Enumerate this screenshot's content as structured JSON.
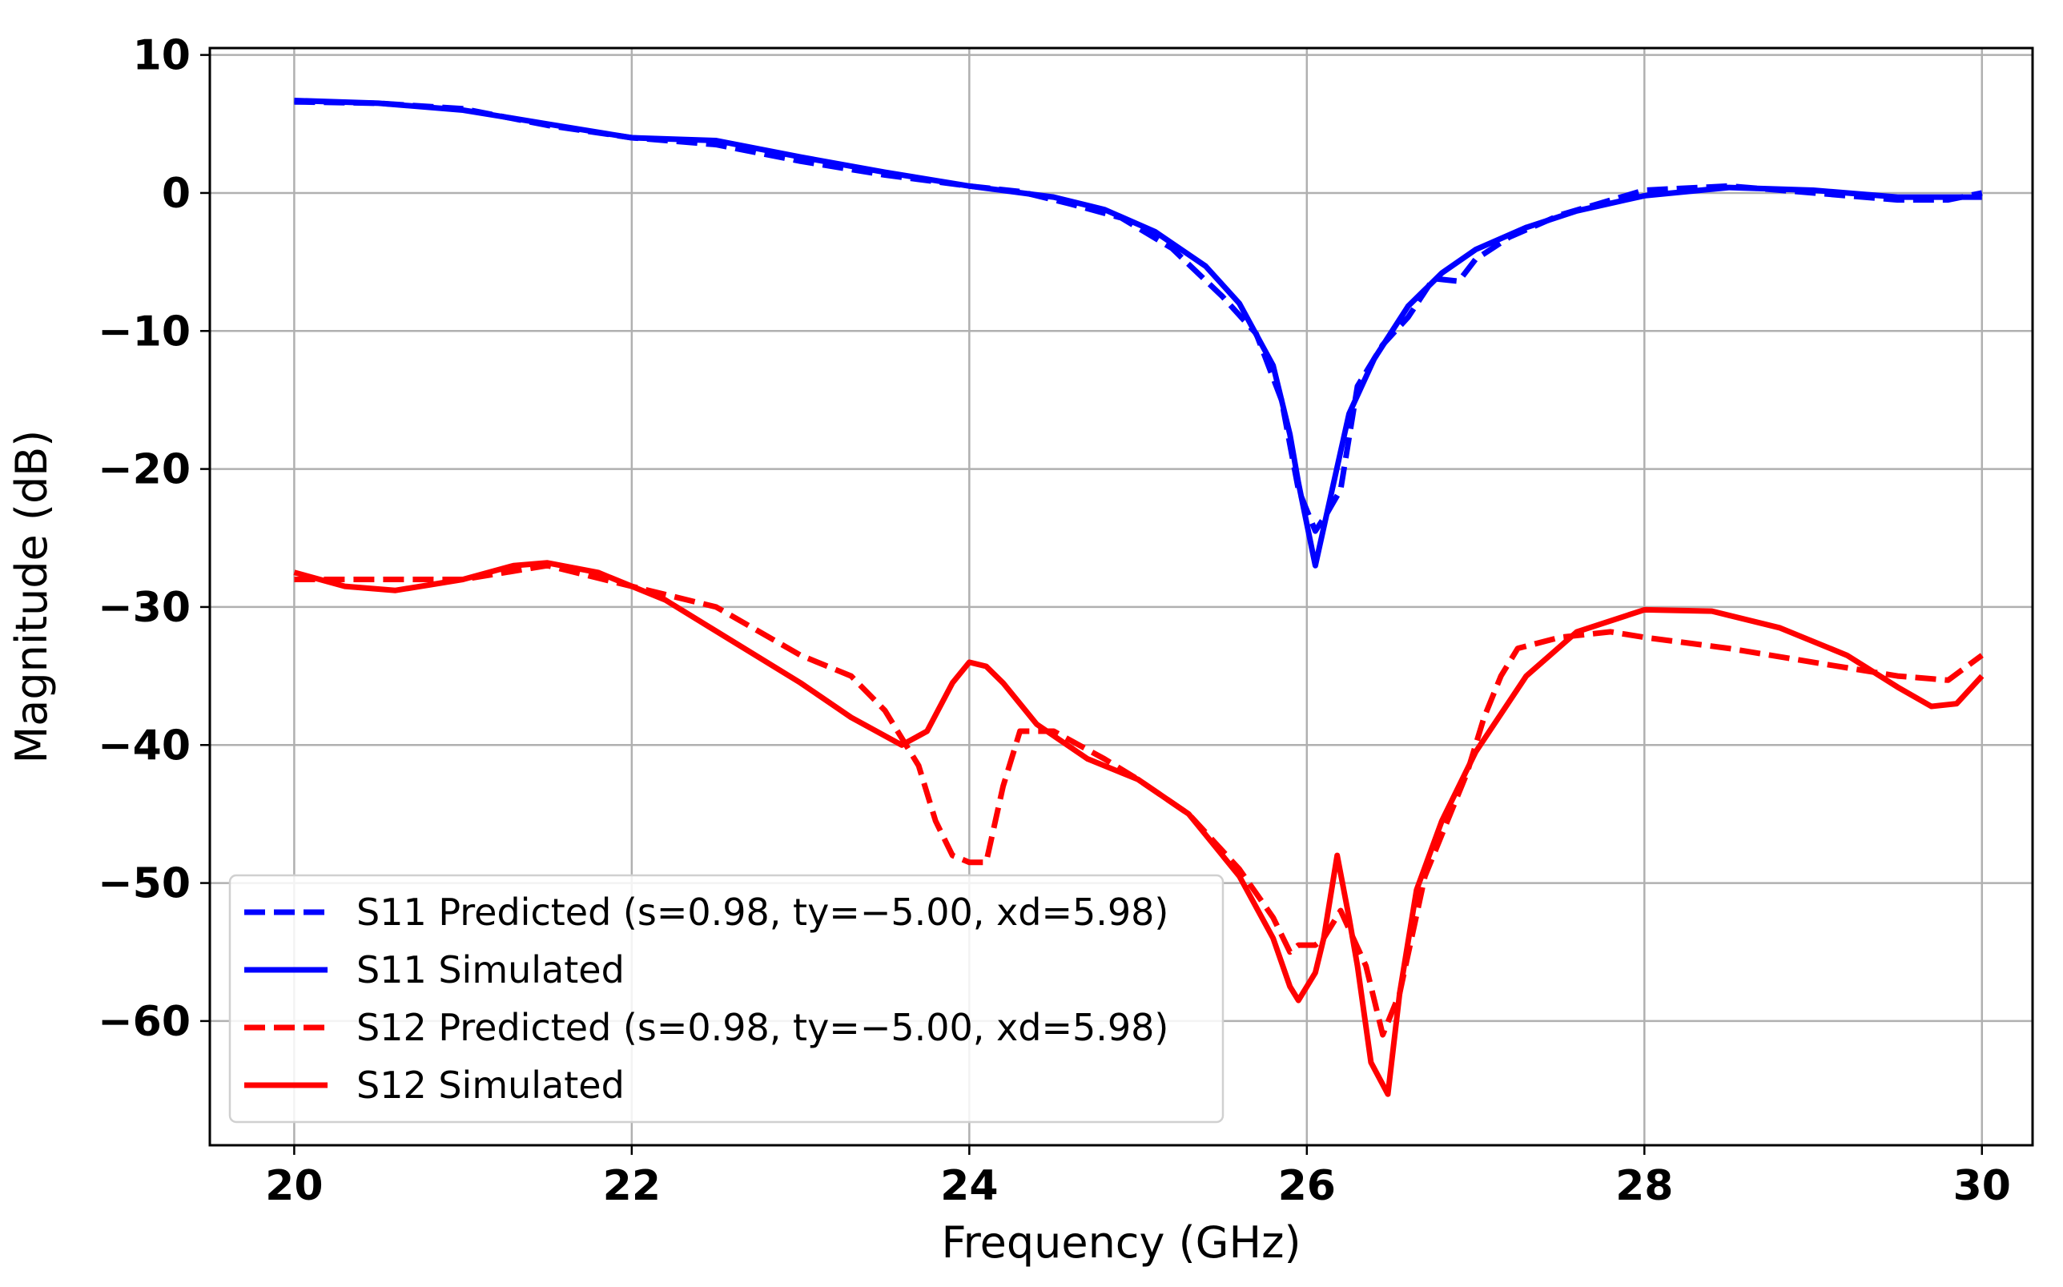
{
  "chart_data": {
    "type": "line",
    "title": "",
    "xlabel": "Frequency (GHz)",
    "ylabel": "Magnitude (dB)",
    "xlim": [
      19.5,
      30.3
    ],
    "ylim": [
      -69,
      10.5
    ],
    "grid": true,
    "legend_position": "lower-left",
    "xticks": [
      20,
      22,
      24,
      26,
      28,
      30
    ],
    "xtick_labels": [
      "20",
      "22",
      "24",
      "26",
      "28",
      "30"
    ],
    "yticks": [
      10,
      0,
      -10,
      -20,
      -30,
      -40,
      -50,
      -60
    ],
    "ytick_labels": [
      "10",
      "0",
      "−10",
      "−20",
      "−30",
      "−40",
      "−50",
      "−60"
    ],
    "series": [
      {
        "name": "S11 Predicted (s=0.98, ty=−5.00, xd=5.98)",
        "color": "#0000ff",
        "style": "dashed",
        "x": [
          20,
          20.5,
          21,
          21.5,
          22,
          22.5,
          23,
          23.5,
          24,
          24.3,
          24.6,
          24.9,
          25.2,
          25.5,
          25.7,
          25.85,
          25.95,
          26.05,
          26.12,
          26.2,
          26.3,
          26.45,
          26.6,
          26.75,
          26.9,
          27.0,
          27.2,
          27.5,
          28,
          28.5,
          29,
          29.5,
          29.8,
          30
        ],
        "values": [
          6.6,
          6.5,
          6.1,
          4.9,
          4.0,
          3.5,
          2.3,
          1.3,
          0.5,
          0.1,
          -0.8,
          -1.8,
          -4.0,
          -7.5,
          -10.2,
          -15.0,
          -21.5,
          -24.5,
          -23.2,
          -21.5,
          -14.0,
          -11.0,
          -9.0,
          -6.2,
          -6.4,
          -4.8,
          -3.2,
          -1.6,
          0.2,
          0.5,
          0.0,
          -0.5,
          -0.5,
          0.0
        ]
      },
      {
        "name": "S11 Simulated",
        "color": "#0000ff",
        "style": "solid",
        "x": [
          20,
          20.5,
          21,
          21.5,
          22,
          22.5,
          23,
          23.5,
          24,
          24.5,
          24.8,
          25.1,
          25.4,
          25.6,
          25.8,
          25.9,
          25.95,
          26.05,
          26.15,
          26.25,
          26.4,
          26.6,
          26.8,
          27.0,
          27.3,
          27.6,
          28.0,
          28.5,
          29,
          29.5,
          30
        ],
        "values": [
          6.7,
          6.5,
          6.0,
          5.0,
          4.0,
          3.8,
          2.6,
          1.5,
          0.5,
          -0.3,
          -1.2,
          -2.8,
          -5.3,
          -8.0,
          -12.5,
          -17.5,
          -21.0,
          -27.0,
          -21.5,
          -16.0,
          -12.0,
          -8.2,
          -5.8,
          -4.1,
          -2.5,
          -1.3,
          -0.2,
          0.4,
          0.2,
          -0.3,
          -0.3
        ]
      },
      {
        "name": "S12 Predicted (s=0.98, ty=−5.00, xd=5.98)",
        "color": "#ff0000",
        "style": "dashed",
        "x": [
          20,
          20.5,
          21,
          21.5,
          22,
          22.5,
          23,
          23.3,
          23.5,
          23.7,
          23.8,
          23.9,
          24.0,
          24.1,
          24.2,
          24.3,
          24.5,
          24.8,
          25.0,
          25.3,
          25.6,
          25.8,
          25.9,
          25.95,
          26.05,
          26.1,
          26.2,
          26.35,
          26.45,
          26.55,
          26.7,
          26.85,
          26.95,
          27.05,
          27.15,
          27.25,
          27.5,
          27.8,
          28.0,
          28.5,
          29,
          29.5,
          29.8,
          30
        ],
        "values": [
          -28.0,
          -28.0,
          -28.0,
          -27.0,
          -28.5,
          -30.0,
          -33.5,
          -35.0,
          -37.5,
          -41.5,
          -45.5,
          -48.0,
          -48.5,
          -48.5,
          -43.0,
          -39.0,
          -39.0,
          -41.0,
          -42.5,
          -45.0,
          -49.0,
          -52.5,
          -55.0,
          -54.5,
          -54.5,
          -54.0,
          -52.0,
          -56.0,
          -61.0,
          -58.0,
          -49.5,
          -45.0,
          -42.0,
          -38.0,
          -35.0,
          -33.0,
          -32.2,
          -31.8,
          -32.2,
          -33.0,
          -34.0,
          -35.0,
          -35.3,
          -33.5
        ]
      },
      {
        "name": "S12 Simulated",
        "color": "#ff0000",
        "style": "solid",
        "x": [
          20,
          20.3,
          20.6,
          21,
          21.3,
          21.5,
          21.8,
          22.2,
          22.6,
          23,
          23.3,
          23.6,
          23.75,
          23.9,
          24.0,
          24.1,
          24.2,
          24.4,
          24.7,
          25.0,
          25.3,
          25.6,
          25.8,
          25.9,
          25.95,
          26.05,
          26.1,
          26.18,
          26.25,
          26.3,
          26.38,
          26.48,
          26.55,
          26.65,
          26.8,
          27.0,
          27.3,
          27.6,
          28.0,
          28.4,
          28.8,
          29.2,
          29.5,
          29.7,
          29.85,
          30
        ],
        "values": [
          -27.5,
          -28.5,
          -28.8,
          -28.0,
          -27.0,
          -26.8,
          -27.5,
          -29.5,
          -32.5,
          -35.5,
          -38.0,
          -40.0,
          -39.0,
          -35.5,
          -34.0,
          -34.3,
          -35.5,
          -38.5,
          -41.0,
          -42.5,
          -45.0,
          -49.5,
          -54.0,
          -57.5,
          -58.5,
          -56.5,
          -54.0,
          -48.0,
          -52.5,
          -56.0,
          -63.0,
          -65.3,
          -58.0,
          -50.5,
          -45.5,
          -40.5,
          -35.0,
          -31.8,
          -30.2,
          -30.3,
          -31.5,
          -33.5,
          -35.8,
          -37.2,
          -37.0,
          -35.0
        ]
      }
    ]
  }
}
